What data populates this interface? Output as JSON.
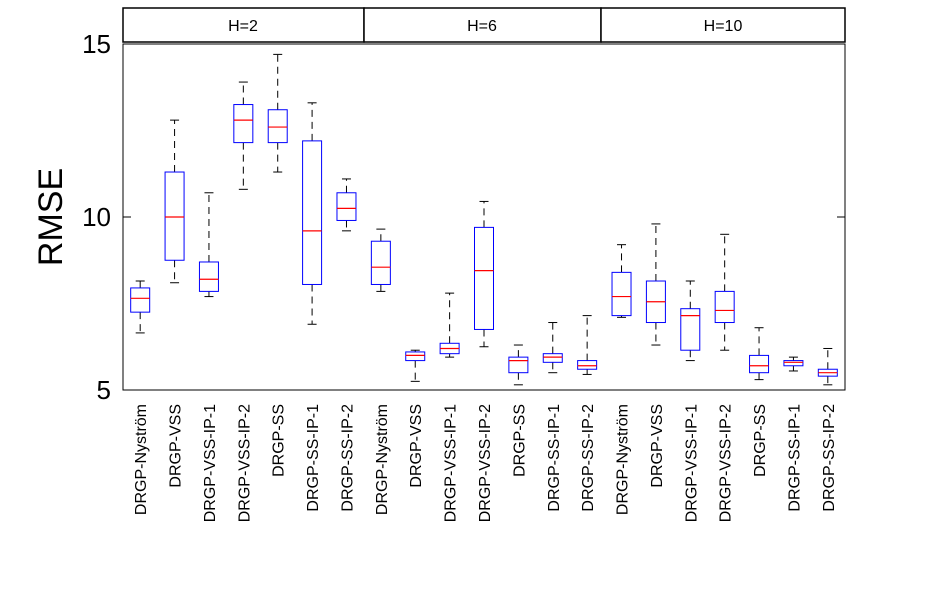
{
  "chart_data": {
    "type": "boxplot",
    "title": "",
    "xlabel": "",
    "ylabel": "RMSE",
    "ylim": [
      5,
      15
    ],
    "yticks": [
      5,
      10,
      15
    ],
    "panels": [
      "H=2",
      "H=6",
      "H=10"
    ],
    "colors": {
      "box": "#0000ff",
      "median": "#ff0000",
      "whisker": "#000000",
      "frame": "#000000"
    },
    "categories": [
      "DRGP-Nyström",
      "DRGP-VSS",
      "DRGP-VSS-IP-1",
      "DRGP-VSS-IP-2",
      "DRGP-SS",
      "DRGP-SS-IP-1",
      "DRGP-SS-IP-2",
      "DRGP-Nyström",
      "DRGP-VSS",
      "DRGP-VSS-IP-1",
      "DRGP-VSS-IP-2",
      "DRGP-SS",
      "DRGP-SS-IP-1",
      "DRGP-SS-IP-2",
      "DRGP-Nyström",
      "DRGP-VSS",
      "DRGP-VSS-IP-1",
      "DRGP-VSS-IP-2",
      "DRGP-SS",
      "DRGP-SS-IP-1",
      "DRGP-SS-IP-2"
    ],
    "boxes": [
      {
        "min": 6.65,
        "q1": 7.25,
        "median": 7.65,
        "q3": 7.95,
        "max": 8.15
      },
      {
        "min": 8.1,
        "q1": 8.75,
        "median": 10.0,
        "q3": 11.3,
        "max": 12.8
      },
      {
        "min": 7.7,
        "q1": 7.85,
        "median": 8.2,
        "q3": 8.7,
        "max": 10.7
      },
      {
        "min": 10.8,
        "q1": 12.15,
        "median": 12.8,
        "q3": 13.25,
        "max": 13.9
      },
      {
        "min": 11.3,
        "q1": 12.15,
        "median": 12.6,
        "q3": 13.1,
        "max": 14.7
      },
      {
        "min": 6.9,
        "q1": 8.05,
        "median": 9.6,
        "q3": 12.2,
        "max": 13.3
      },
      {
        "min": 9.6,
        "q1": 9.9,
        "median": 10.25,
        "q3": 10.7,
        "max": 11.1
      },
      {
        "min": 7.85,
        "q1": 8.05,
        "median": 8.55,
        "q3": 9.3,
        "max": 9.65
      },
      {
        "min": 5.25,
        "q1": 5.85,
        "median": 6.0,
        "q3": 6.1,
        "max": 6.15
      },
      {
        "min": 5.95,
        "q1": 6.05,
        "median": 6.2,
        "q3": 6.35,
        "max": 7.8
      },
      {
        "min": 6.25,
        "q1": 6.75,
        "median": 8.45,
        "q3": 9.7,
        "max": 10.45
      },
      {
        "min": 5.15,
        "q1": 5.5,
        "median": 5.85,
        "q3": 5.95,
        "max": 6.3
      },
      {
        "min": 5.5,
        "q1": 5.8,
        "median": 5.95,
        "q3": 6.05,
        "max": 6.95
      },
      {
        "min": 5.45,
        "q1": 5.6,
        "median": 5.7,
        "q3": 5.85,
        "max": 7.15
      },
      {
        "min": 7.1,
        "q1": 7.15,
        "median": 7.7,
        "q3": 8.4,
        "max": 9.2
      },
      {
        "min": 6.3,
        "q1": 6.95,
        "median": 7.55,
        "q3": 8.15,
        "max": 9.8
      },
      {
        "min": 5.85,
        "q1": 6.15,
        "median": 7.15,
        "q3": 7.35,
        "max": 8.15
      },
      {
        "min": 6.15,
        "q1": 6.95,
        "median": 7.3,
        "q3": 7.85,
        "max": 9.5
      },
      {
        "min": 5.3,
        "q1": 5.5,
        "median": 5.7,
        "q3": 6.0,
        "max": 6.8
      },
      {
        "min": 5.55,
        "q1": 5.7,
        "median": 5.8,
        "q3": 5.85,
        "max": 5.95
      },
      {
        "min": 5.15,
        "q1": 5.4,
        "median": 5.5,
        "q3": 5.6,
        "max": 6.2
      }
    ]
  }
}
